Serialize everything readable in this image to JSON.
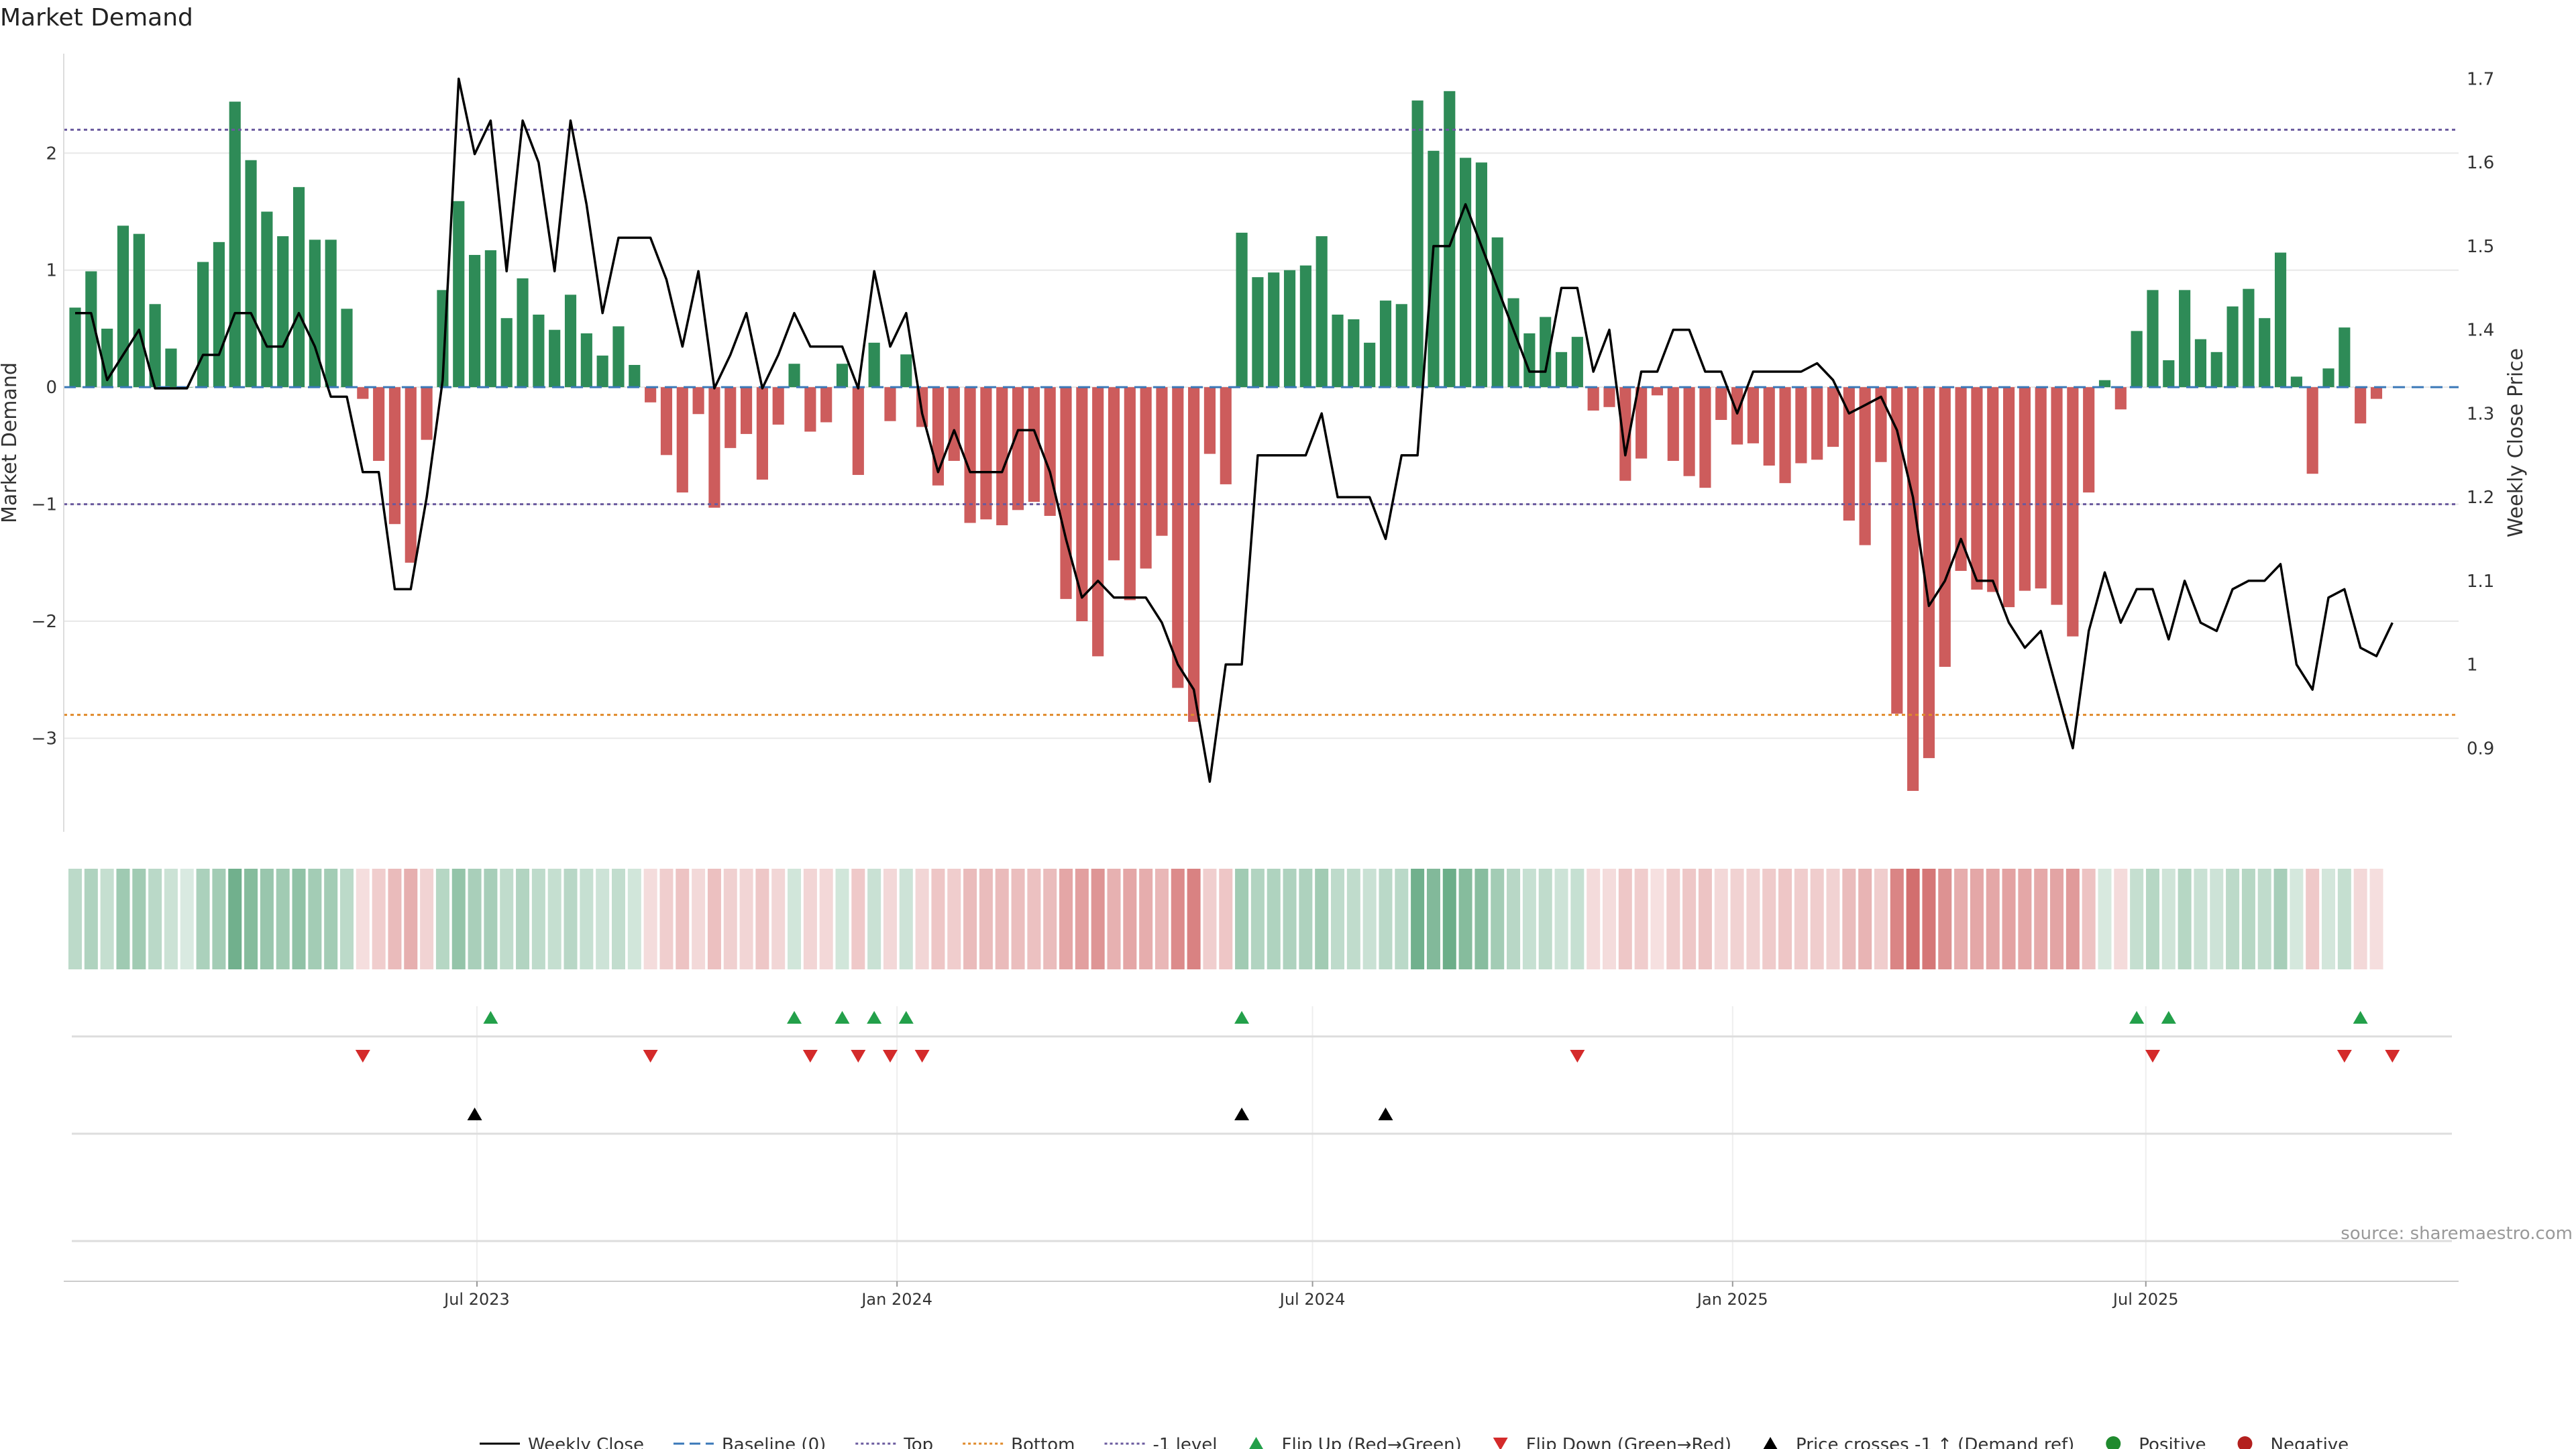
{
  "chart_data": {
    "type": "bar",
    "title": "Market Demand",
    "ylabel": "Market Demand",
    "y2label": "Weekly Close Price",
    "source": "source: sharemaestro.com",
    "ylim": [
      -3.8,
      2.85
    ],
    "y2lim": [
      0.8,
      1.73
    ],
    "yticks": [
      2,
      1,
      0,
      -1,
      -2,
      -3
    ],
    "ytick_labels": [
      "2",
      "1",
      "0",
      "−1",
      "−2",
      "−3"
    ],
    "y2ticks": [
      1.7,
      1.6,
      1.5,
      1.4,
      1.3,
      1.2,
      1.1,
      1,
      0.9
    ],
    "y2tick_labels": [
      "1.7",
      "1.6",
      "1.5",
      "1.4",
      "1.3",
      "1.2",
      "1.1",
      "1",
      "0.9"
    ],
    "x_start": "2023-01-01",
    "x_end": "2025-11-15",
    "xticks": [
      {
        "date": "2023-07-01",
        "label": "Jul 2023"
      },
      {
        "date": "2024-01-01",
        "label": "Jan 2024"
      },
      {
        "date": "2024-07-01",
        "label": "Jul 2024"
      },
      {
        "date": "2025-01-01",
        "label": "Jan 2025"
      },
      {
        "date": "2025-07-01",
        "label": "Jul 2025"
      }
    ],
    "levels": {
      "top": 2.2,
      "bottom": -2.8,
      "minus_one": -1,
      "baseline": 0
    },
    "weeks": [
      "2023-01-06",
      "2023-01-13",
      "2023-01-20",
      "2023-01-27",
      "2023-02-03",
      "2023-02-10",
      "2023-02-17",
      "2023-02-24",
      "2023-03-03",
      "2023-03-10",
      "2023-03-17",
      "2023-03-24",
      "2023-03-31",
      "2023-04-07",
      "2023-04-14",
      "2023-04-21",
      "2023-04-28",
      "2023-05-05",
      "2023-05-12",
      "2023-05-19",
      "2023-05-26",
      "2023-06-02",
      "2023-06-09",
      "2023-06-16",
      "2023-06-23",
      "2023-06-30",
      "2023-07-07",
      "2023-07-14",
      "2023-07-21",
      "2023-07-28",
      "2023-08-04",
      "2023-08-11",
      "2023-08-18",
      "2023-08-25",
      "2023-09-01",
      "2023-09-08",
      "2023-09-15",
      "2023-09-22",
      "2023-09-29",
      "2023-10-06",
      "2023-10-13",
      "2023-10-20",
      "2023-10-27",
      "2023-11-03",
      "2023-11-10",
      "2023-11-17",
      "2023-11-24",
      "2023-12-01",
      "2023-12-08",
      "2023-12-15",
      "2023-12-22",
      "2023-12-29",
      "2024-01-05",
      "2024-01-12",
      "2024-01-19",
      "2024-01-26",
      "2024-02-02",
      "2024-02-09",
      "2024-02-16",
      "2024-02-23",
      "2024-03-01",
      "2024-03-08",
      "2024-03-15",
      "2024-03-22",
      "2024-03-29",
      "2024-04-05",
      "2024-04-12",
      "2024-04-19",
      "2024-04-26",
      "2024-05-03",
      "2024-05-10",
      "2024-05-17",
      "2024-05-24",
      "2024-05-31",
      "2024-06-07",
      "2024-06-14",
      "2024-06-21",
      "2024-06-28",
      "2024-07-05",
      "2024-07-12",
      "2024-07-19",
      "2024-07-26",
      "2024-08-02",
      "2024-08-09",
      "2024-08-16",
      "2024-08-23",
      "2024-08-30",
      "2024-09-06",
      "2024-09-13",
      "2024-09-20",
      "2024-09-27",
      "2024-10-04",
      "2024-10-11",
      "2024-10-18",
      "2024-10-25",
      "2024-11-01",
      "2024-11-08",
      "2024-11-15",
      "2024-11-22",
      "2024-11-29",
      "2024-12-06",
      "2024-12-13",
      "2024-12-20",
      "2024-12-27",
      "2025-01-03",
      "2025-01-10",
      "2025-01-17",
      "2025-01-24",
      "2025-01-31",
      "2025-02-07",
      "2025-02-14",
      "2025-02-21",
      "2025-02-28",
      "2025-03-07",
      "2025-03-14",
      "2025-03-21",
      "2025-03-28",
      "2025-04-04",
      "2025-04-11",
      "2025-04-18",
      "2025-04-25",
      "2025-05-02",
      "2025-05-09",
      "2025-05-16",
      "2025-05-23",
      "2025-05-30",
      "2025-06-06",
      "2025-06-13",
      "2025-06-20",
      "2025-06-27",
      "2025-07-04",
      "2025-07-11",
      "2025-07-18",
      "2025-07-25",
      "2025-08-01",
      "2025-08-08",
      "2025-08-15",
      "2025-08-22",
      "2025-08-29",
      "2025-09-05",
      "2025-09-12",
      "2025-09-19",
      "2025-09-26",
      "2025-10-03",
      "2025-10-10",
      "2025-10-17",
      "2025-10-24",
      "2025-10-31",
      "2025-11-07"
    ],
    "series": [
      {
        "name": "Market Demand",
        "axis": "left",
        "values": [
          0.68,
          0.99,
          0.5,
          1.38,
          1.31,
          0.71,
          0.33,
          0,
          1.07,
          1.24,
          2.44,
          1.94,
          1.5,
          1.29,
          1.71,
          1.26,
          1.26,
          0.67,
          -0.1,
          -0.63,
          -1.17,
          -1.5,
          -0.45,
          0.83,
          1.59,
          1.13,
          1.17,
          0.59,
          0.93,
          0.62,
          0.49,
          0.79,
          0.46,
          0.27,
          0.52,
          0.19,
          -0.13,
          -0.58,
          -0.9,
          -0.23,
          -1.03,
          -0.52,
          -0.4,
          -0.79,
          -0.32,
          0.2,
          -0.38,
          -0.3,
          0.2,
          -0.75,
          0.38,
          -0.29,
          0.28,
          -0.34,
          -0.84,
          -0.63,
          -1.16,
          -1.13,
          -1.18,
          -1.05,
          -0.98,
          -1.1,
          -1.81,
          -2.0,
          -2.3,
          -1.48,
          -1.82,
          -1.55,
          -1.27,
          -2.57,
          -2.86,
          -0.57,
          -0.83,
          1.32,
          0.94,
          0.98,
          1.0,
          1.04,
          1.29,
          0.62,
          0.58,
          0.38,
          0.74,
          0.71,
          2.45,
          2.02,
          2.53,
          1.96,
          1.92,
          1.28,
          0.76,
          0.46,
          0.6,
          0.3,
          0.43,
          -0.2,
          -0.17,
          -0.8,
          -0.61,
          -0.07,
          -0.63,
          -0.76,
          -0.86,
          -0.28,
          -0.49,
          -0.48,
          -0.67,
          -0.82,
          -0.65,
          -0.62,
          -0.51,
          -1.14,
          -1.35,
          -0.64,
          -2.79,
          -3.45,
          -3.17,
          -2.39,
          -1.57,
          -1.73,
          -1.75,
          -1.88,
          -1.74,
          -1.72,
          -1.86,
          -2.13,
          -0.9,
          0.06,
          -0.19,
          0.48,
          0.83,
          0.23,
          0.83,
          0.41,
          0.3,
          0.69,
          0.84,
          0.59,
          1.15,
          0.09,
          -0.74,
          0.16,
          0.51,
          -0.31,
          -0.1
        ]
      },
      {
        "name": "Weekly Close",
        "axis": "right",
        "values": [
          1.42,
          1.42,
          1.34,
          1.37,
          1.4,
          1.33,
          1.33,
          1.33,
          1.37,
          1.37,
          1.42,
          1.42,
          1.38,
          1.38,
          1.42,
          1.38,
          1.32,
          1.32,
          1.23,
          1.23,
          1.09,
          1.09,
          1.2,
          1.34,
          1.7,
          1.61,
          1.65,
          1.47,
          1.65,
          1.6,
          1.47,
          1.65,
          1.55,
          1.42,
          1.51,
          1.51,
          1.51,
          1.46,
          1.38,
          1.47,
          1.33,
          1.37,
          1.42,
          1.33,
          1.37,
          1.42,
          1.38,
          1.38,
          1.38,
          1.33,
          1.47,
          1.38,
          1.42,
          1.3,
          1.23,
          1.28,
          1.23,
          1.23,
          1.23,
          1.28,
          1.28,
          1.23,
          1.15,
          1.08,
          1.1,
          1.08,
          1.08,
          1.08,
          1.05,
          1.0,
          0.97,
          0.86,
          1.0,
          1.0,
          1.25,
          1.25,
          1.25,
          1.25,
          1.3,
          1.2,
          1.2,
          1.2,
          1.15,
          1.25,
          1.25,
          1.5,
          1.5,
          1.55,
          1.5,
          1.45,
          1.4,
          1.35,
          1.35,
          1.45,
          1.45,
          1.35,
          1.4,
          1.25,
          1.35,
          1.35,
          1.4,
          1.4,
          1.35,
          1.35,
          1.3,
          1.35,
          1.35,
          1.35,
          1.35,
          1.36,
          1.34,
          1.3,
          1.31,
          1.32,
          1.28,
          1.2,
          1.07,
          1.1,
          1.15,
          1.1,
          1.1,
          1.05,
          1.02,
          1.04,
          0.97,
          0.9,
          1.04,
          1.11,
          1.05,
          1.09,
          1.09,
          1.03,
          1.1,
          1.05,
          1.04,
          1.09,
          1.1,
          1.1,
          1.12,
          1.0,
          0.97,
          1.08,
          1.09,
          1.02,
          1.01,
          1.05
        ]
      }
    ],
    "flip_up_weeks": [
      26,
      45,
      48,
      50,
      52,
      73,
      129,
      131,
      143
    ],
    "flip_down_weeks": [
      18,
      36,
      46,
      49,
      51,
      53,
      94,
      130,
      142,
      145
    ],
    "price_cross_weeks": [
      25,
      73,
      82
    ],
    "legend": [
      {
        "label": "Weekly Close",
        "symbol": "line",
        "color": "#000000"
      },
      {
        "label": "Baseline (0)",
        "symbol": "dash",
        "color": "#3a78b8"
      },
      {
        "label": "Top",
        "symbol": "dot",
        "color": "#6a5a9e"
      },
      {
        "label": "Bottom",
        "symbol": "dot",
        "color": "#e08a2a"
      },
      {
        "label": "-1 level",
        "symbol": "dot",
        "color": "#6a5a9e"
      },
      {
        "label": "Flip Up (Red→Green)",
        "symbol": "tri-up",
        "color": "#23a04a"
      },
      {
        "label": "Flip Down (Green→Red)",
        "symbol": "tri-down",
        "color": "#d42a2a"
      },
      {
        "label": "Price crosses -1 ↑ (Demand ref)",
        "symbol": "tri-up",
        "color": "#000000"
      },
      {
        "label": "Positive",
        "symbol": "circle",
        "color": "#1f8a2e"
      },
      {
        "label": "Negative",
        "symbol": "circle",
        "color": "#b3201e"
      }
    ],
    "colors": {
      "positive_bar": "#2e8b57",
      "negative_bar": "#cd5c5c",
      "price_line": "#000000",
      "grid": "#e8e8e8"
    }
  }
}
